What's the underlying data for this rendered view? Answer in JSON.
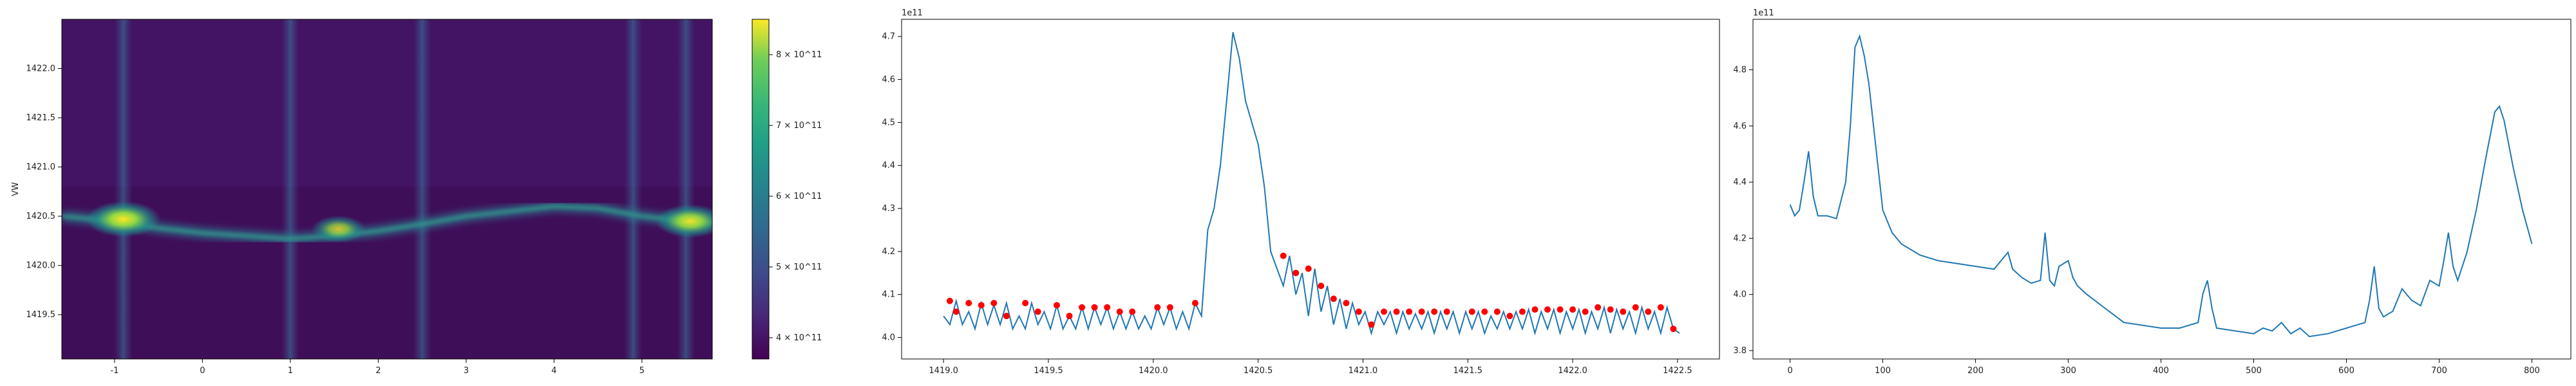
{
  "chart_data": [
    {
      "type": "heatmap",
      "ylabel": "VW",
      "xlabel": "",
      "title": "",
      "xlim": [
        -1.6,
        5.8
      ],
      "ylim": [
        1419.05,
        1422.5
      ],
      "xticks": [
        "-1",
        "0",
        "1",
        "2",
        "3",
        "4",
        "5"
      ],
      "xtick_values": [
        -1,
        0,
        1,
        2,
        3,
        4,
        5
      ],
      "yticks": [
        "1419.5",
        "1420.0",
        "1420.5",
        "1421.0",
        "1421.5",
        "1422.0"
      ],
      "ytick_values": [
        1419.5,
        1420.0,
        1420.5,
        1421.0,
        1421.5,
        1422.0
      ],
      "vertical_bright_bands_x": [
        -0.9,
        1.0,
        2.5,
        4.9,
        5.5
      ],
      "ridge": {
        "x": [
          -1.6,
          -1.0,
          -0.5,
          0.0,
          0.5,
          1.0,
          1.5,
          2.0,
          2.5,
          3.0,
          3.5,
          4.0,
          4.5,
          5.0,
          5.5,
          5.8
        ],
        "y": [
          1420.5,
          1420.45,
          1420.38,
          1420.33,
          1420.3,
          1420.27,
          1420.3,
          1420.35,
          1420.42,
          1420.5,
          1420.55,
          1420.6,
          1420.58,
          1420.5,
          1420.45,
          1420.43
        ]
      },
      "hot_spots": [
        {
          "x": -0.9,
          "y": 1420.47,
          "level": 1.0
        },
        {
          "x": 1.55,
          "y": 1420.37,
          "level": 0.6
        },
        {
          "x": 5.55,
          "y": 1420.45,
          "level": 0.9
        }
      ],
      "colorbar": {
        "colormap": "viridis",
        "ticks": [
          "4 × 10^11",
          "5 × 10^11",
          "6 × 10^11",
          "7 × 10^11",
          "8 × 10^11"
        ],
        "tick_values": [
          400000000000.0,
          500000000000.0,
          600000000000.0,
          700000000000.0,
          800000000000.0
        ],
        "range": [
          370000000000.0,
          850000000000.0
        ]
      }
    },
    {
      "type": "line",
      "offset_label": "1e11",
      "xlim": [
        1418.8,
        1422.7
      ],
      "ylim": [
        3.95,
        4.74
      ],
      "xticks": [
        "1419.0",
        "1419.5",
        "1420.0",
        "1420.5",
        "1421.0",
        "1421.5",
        "1422.0",
        "1422.5"
      ],
      "xtick_values": [
        1419.0,
        1419.5,
        1420.0,
        1420.5,
        1421.0,
        1421.5,
        1422.0,
        1422.5
      ],
      "yticks": [
        "4.0",
        "4.1",
        "4.2",
        "4.3",
        "4.4",
        "4.5",
        "4.6",
        "4.7"
      ],
      "ytick_values": [
        4.0,
        4.1,
        4.2,
        4.3,
        4.4,
        4.5,
        4.6,
        4.7
      ],
      "line_color": "#1f77b4",
      "marker_color": "#ff0000",
      "series": [
        {
          "x": [
            1419.0,
            1419.03,
            1419.06,
            1419.09,
            1419.12,
            1419.15,
            1419.18,
            1419.21,
            1419.24,
            1419.27,
            1419.3,
            1419.33,
            1419.36,
            1419.39,
            1419.42,
            1419.45,
            1419.48,
            1419.51,
            1419.54,
            1419.57,
            1419.6,
            1419.63,
            1419.66,
            1419.69,
            1419.72,
            1419.75,
            1419.78,
            1419.81,
            1419.84,
            1419.87,
            1419.9,
            1419.93,
            1419.96,
            1419.99,
            1420.02,
            1420.05,
            1420.08,
            1420.11,
            1420.14,
            1420.17,
            1420.2,
            1420.23,
            1420.26,
            1420.29,
            1420.32,
            1420.35,
            1420.38,
            1420.41,
            1420.44,
            1420.47,
            1420.5,
            1420.53,
            1420.56,
            1420.59,
            1420.62,
            1420.65,
            1420.68,
            1420.71,
            1420.74,
            1420.77,
            1420.8,
            1420.83,
            1420.86,
            1420.89,
            1420.92,
            1420.95,
            1420.98,
            1421.01,
            1421.04,
            1421.07,
            1421.1,
            1421.13,
            1421.16,
            1421.19,
            1421.22,
            1421.25,
            1421.28,
            1421.31,
            1421.34,
            1421.37,
            1421.4,
            1421.43,
            1421.46,
            1421.49,
            1421.52,
            1421.55,
            1421.58,
            1421.61,
            1421.64,
            1421.67,
            1421.7,
            1421.73,
            1421.76,
            1421.79,
            1421.82,
            1421.85,
            1421.88,
            1421.91,
            1421.94,
            1421.97,
            1422.0,
            1422.03,
            1422.06,
            1422.09,
            1422.12,
            1422.15,
            1422.18,
            1422.21,
            1422.24,
            1422.27,
            1422.3,
            1422.33,
            1422.36,
            1422.39,
            1422.42,
            1422.45,
            1422.48,
            1422.51
          ],
          "y": [
            4.05,
            4.03,
            4.085,
            4.03,
            4.06,
            4.02,
            4.08,
            4.03,
            4.075,
            4.03,
            4.08,
            4.02,
            4.05,
            4.02,
            4.08,
            4.03,
            4.06,
            4.02,
            4.075,
            4.02,
            4.05,
            4.02,
            4.07,
            4.02,
            4.07,
            4.03,
            4.07,
            4.02,
            4.06,
            4.02,
            4.06,
            4.02,
            4.05,
            4.02,
            4.07,
            4.03,
            4.07,
            4.02,
            4.06,
            4.02,
            4.08,
            4.05,
            4.25,
            4.3,
            4.4,
            4.55,
            4.71,
            4.65,
            4.55,
            4.5,
            4.45,
            4.35,
            4.2,
            4.16,
            4.12,
            4.19,
            4.1,
            4.15,
            4.05,
            4.16,
            4.06,
            4.12,
            4.03,
            4.09,
            4.02,
            4.08,
            4.03,
            4.06,
            4.01,
            4.06,
            4.03,
            4.06,
            4.01,
            4.06,
            4.02,
            4.055,
            4.02,
            4.06,
            4.01,
            4.06,
            4.02,
            4.06,
            4.01,
            4.06,
            4.02,
            4.06,
            4.01,
            4.05,
            4.02,
            4.06,
            4.02,
            4.06,
            4.02,
            4.065,
            4.01,
            4.06,
            4.02,
            4.065,
            4.01,
            4.06,
            4.02,
            4.065,
            4.01,
            4.06,
            4.02,
            4.07,
            4.01,
            4.065,
            4.02,
            4.06,
            4.01,
            4.07,
            4.02,
            4.06,
            4.01,
            4.07,
            4.02,
            4.01
          ]
        }
      ],
      "markers": {
        "x": [
          1419.03,
          1419.06,
          1419.12,
          1419.18,
          1419.24,
          1419.3,
          1419.39,
          1419.45,
          1419.54,
          1419.6,
          1419.66,
          1419.72,
          1419.78,
          1419.84,
          1419.9,
          1420.02,
          1420.08,
          1420.2,
          1420.62,
          1420.68,
          1420.74,
          1420.8,
          1420.86,
          1420.92,
          1420.98,
          1421.04,
          1421.1,
          1421.16,
          1421.22,
          1421.28,
          1421.34,
          1421.4,
          1421.52,
          1421.58,
          1421.64,
          1421.7,
          1421.76,
          1421.82,
          1421.88,
          1421.94,
          1422.0,
          1422.06,
          1422.12,
          1422.18,
          1422.24,
          1422.3,
          1422.36,
          1422.42,
          1422.48
        ],
        "y": [
          4.085,
          4.06,
          4.08,
          4.075,
          4.08,
          4.05,
          4.08,
          4.06,
          4.075,
          4.05,
          4.07,
          4.07,
          4.07,
          4.06,
          4.06,
          4.07,
          4.07,
          4.08,
          4.19,
          4.15,
          4.16,
          4.12,
          4.09,
          4.08,
          4.06,
          4.03,
          4.06,
          4.06,
          4.06,
          4.06,
          4.06,
          4.06,
          4.06,
          4.06,
          4.06,
          4.05,
          4.06,
          4.065,
          4.065,
          4.065,
          4.065,
          4.06,
          4.07,
          4.065,
          4.06,
          4.07,
          4.06,
          4.07,
          4.02
        ]
      }
    },
    {
      "type": "line",
      "offset_label": "1e11",
      "xlim": [
        -40,
        842
      ],
      "ylim": [
        3.77,
        4.98
      ],
      "xticks": [
        "0",
        "100",
        "200",
        "300",
        "400",
        "500",
        "600",
        "700",
        "800"
      ],
      "xtick_values": [
        0,
        100,
        200,
        300,
        400,
        500,
        600,
        700,
        800
      ],
      "yticks": [
        "3.8",
        "4.0",
        "4.2",
        "4.4",
        "4.6",
        "4.8"
      ],
      "ytick_values": [
        3.8,
        4.0,
        4.2,
        4.4,
        4.6,
        4.8
      ],
      "line_color": "#1f77b4",
      "series": [
        {
          "x": [
            0,
            5,
            10,
            15,
            20,
            25,
            30,
            40,
            50,
            60,
            65,
            70,
            75,
            80,
            85,
            90,
            95,
            100,
            110,
            120,
            140,
            160,
            180,
            200,
            220,
            230,
            235,
            240,
            250,
            260,
            270,
            275,
            280,
            285,
            290,
            300,
            305,
            310,
            320,
            340,
            360,
            380,
            400,
            420,
            440,
            445,
            450,
            455,
            460,
            480,
            500,
            510,
            520,
            530,
            540,
            550,
            560,
            580,
            600,
            620,
            625,
            630,
            635,
            640,
            650,
            660,
            670,
            680,
            690,
            700,
            705,
            710,
            715,
            720,
            730,
            740,
            750,
            760,
            765,
            770,
            780,
            790,
            800
          ],
          "y": [
            4.32,
            4.28,
            4.3,
            4.4,
            4.51,
            4.35,
            4.28,
            4.28,
            4.27,
            4.4,
            4.6,
            4.88,
            4.92,
            4.85,
            4.75,
            4.6,
            4.45,
            4.3,
            4.22,
            4.18,
            4.14,
            4.12,
            4.11,
            4.1,
            4.09,
            4.13,
            4.15,
            4.09,
            4.06,
            4.04,
            4.05,
            4.22,
            4.05,
            4.03,
            4.1,
            4.12,
            4.06,
            4.03,
            4.0,
            3.95,
            3.9,
            3.89,
            3.88,
            3.88,
            3.9,
            4.0,
            4.05,
            3.95,
            3.88,
            3.87,
            3.86,
            3.88,
            3.87,
            3.9,
            3.86,
            3.88,
            3.85,
            3.86,
            3.88,
            3.9,
            3.98,
            4.1,
            3.95,
            3.92,
            3.94,
            4.02,
            3.98,
            3.96,
            4.05,
            4.03,
            4.12,
            4.22,
            4.1,
            4.05,
            4.15,
            4.3,
            4.48,
            4.65,
            4.67,
            4.62,
            4.45,
            4.3,
            4.18
          ]
        }
      ]
    }
  ]
}
